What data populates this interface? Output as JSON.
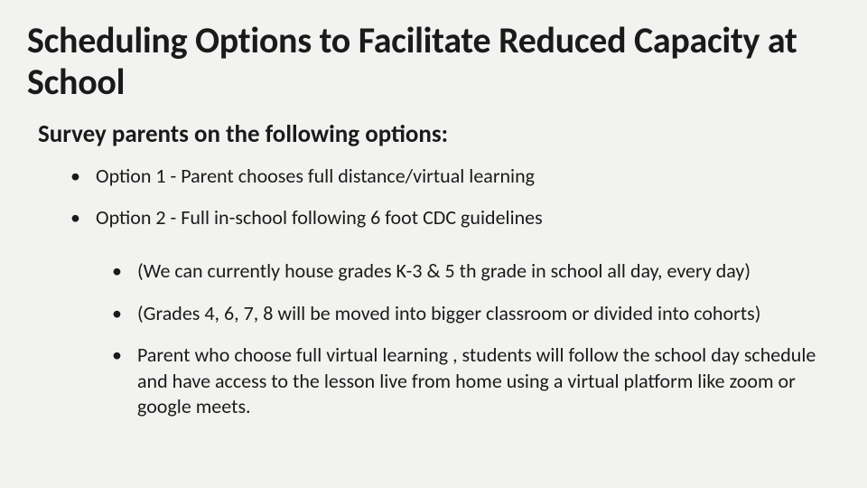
{
  "background_color": "#f2f2f0",
  "text_color": "#1a1a1a",
  "font_family": "Calibri",
  "title": {
    "text": "Scheduling Options to Facilitate Reduced Capacity at School",
    "fontsize": 40,
    "fontweight": 700
  },
  "subtitle": {
    "text": "Survey parents on the following options:",
    "fontsize": 27,
    "fontweight": 700
  },
  "primary_bullets": {
    "fontsize": 22,
    "items": [
      "Option 1 - Parent chooses full distance/virtual learning",
      "Option 2 - Full in-school following 6 foot CDC guidelines"
    ]
  },
  "secondary_bullets": {
    "fontsize": 22,
    "items": [
      "(We can currently house grades K-3 & 5 th grade in school all day, every day)",
      "(Grades 4, 6, 7, 8 will be moved into bigger classroom or divided into cohorts)",
      "Parent who choose full virtual learning , students will follow the school day schedule and have access to the lesson live from home using a virtual platform like zoom or google meets."
    ]
  }
}
